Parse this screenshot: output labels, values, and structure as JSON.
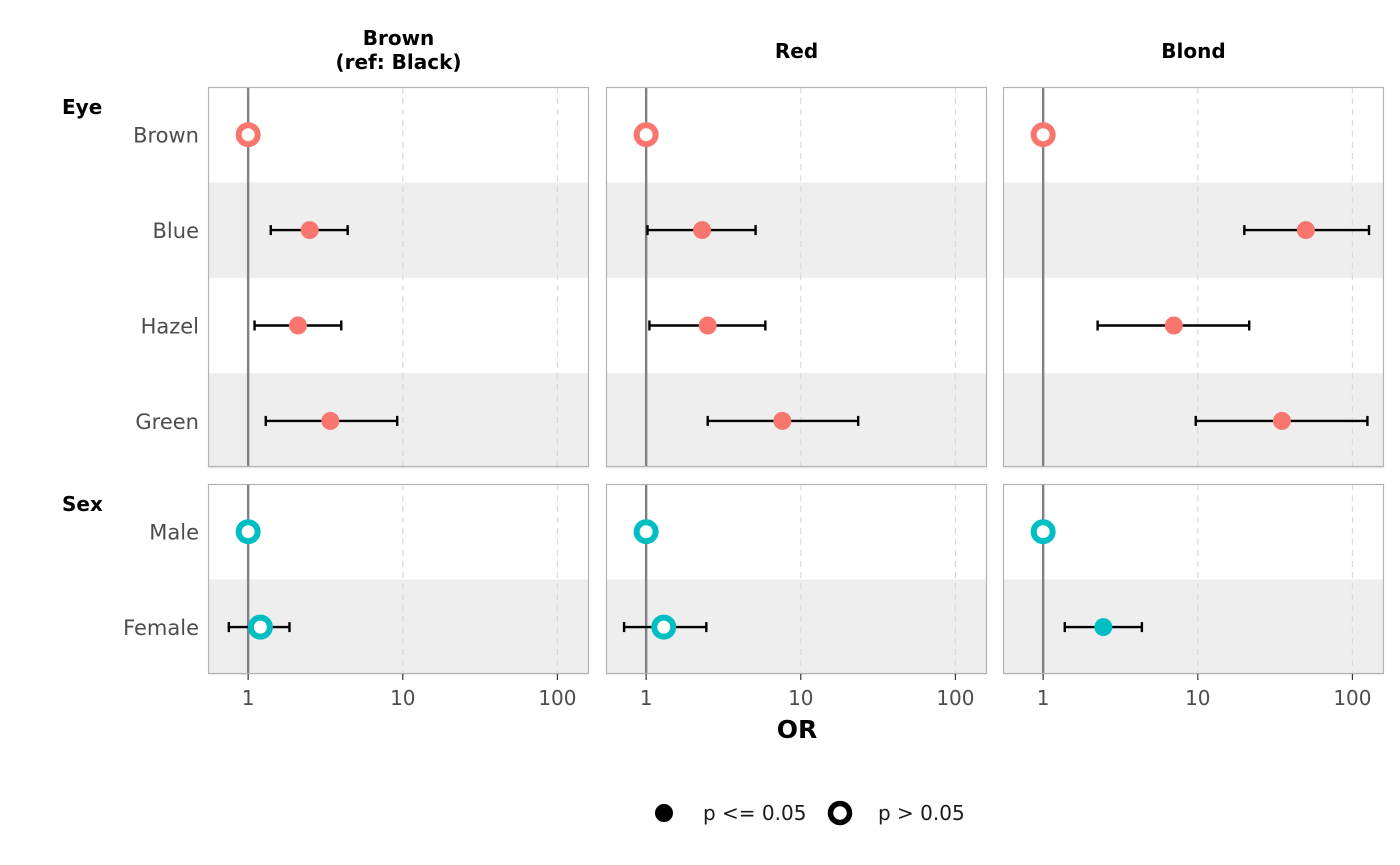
{
  "chart_data": {
    "type": "scatter",
    "subtype": "forest-plot-with-error-bars",
    "x_axis": {
      "label": "OR",
      "scale": "log10",
      "ticks": [
        1,
        10,
        100
      ],
      "tick_labels": [
        "1",
        "10",
        "100"
      ],
      "xlim": [
        0.55,
        160
      ],
      "reference_line": 1
    },
    "panels": [
      {
        "label": "Brown\n(ref: Black)"
      },
      {
        "label": "Red"
      },
      {
        "label": "Blond"
      }
    ],
    "groups": [
      {
        "label": "Eye",
        "color": "#F8766D",
        "rows": [
          "Brown",
          "Blue",
          "Hazel",
          "Green"
        ]
      },
      {
        "label": "Sex",
        "color": "#00BFC4",
        "rows": [
          "Male",
          "Female"
        ]
      }
    ],
    "series": [
      {
        "panel": 0,
        "group": 0,
        "row": 0,
        "or": 1.0,
        "ci": null,
        "significant": false
      },
      {
        "panel": 0,
        "group": 0,
        "row": 1,
        "or": 2.5,
        "ci": [
          1.4,
          4.4
        ],
        "significant": true
      },
      {
        "panel": 0,
        "group": 0,
        "row": 2,
        "or": 2.1,
        "ci": [
          1.1,
          4.0
        ],
        "significant": true
      },
      {
        "panel": 0,
        "group": 0,
        "row": 3,
        "or": 3.4,
        "ci": [
          1.3,
          9.2
        ],
        "significant": true
      },
      {
        "panel": 0,
        "group": 1,
        "row": 0,
        "or": 1.0,
        "ci": null,
        "significant": false
      },
      {
        "panel": 0,
        "group": 1,
        "row": 1,
        "or": 1.2,
        "ci": [
          0.75,
          1.85
        ],
        "significant": false
      },
      {
        "panel": 1,
        "group": 0,
        "row": 0,
        "or": 1.0,
        "ci": null,
        "significant": false
      },
      {
        "panel": 1,
        "group": 0,
        "row": 1,
        "or": 2.3,
        "ci": [
          1.02,
          5.1
        ],
        "significant": true
      },
      {
        "panel": 1,
        "group": 0,
        "row": 2,
        "or": 2.5,
        "ci": [
          1.05,
          5.9
        ],
        "significant": true
      },
      {
        "panel": 1,
        "group": 0,
        "row": 3,
        "or": 7.6,
        "ci": [
          2.5,
          23.5
        ],
        "significant": true
      },
      {
        "panel": 1,
        "group": 1,
        "row": 0,
        "or": 1.0,
        "ci": null,
        "significant": false
      },
      {
        "panel": 1,
        "group": 1,
        "row": 1,
        "or": 1.3,
        "ci": [
          0.72,
          2.45
        ],
        "significant": false
      },
      {
        "panel": 2,
        "group": 0,
        "row": 0,
        "or": 1.0,
        "ci": null,
        "significant": false
      },
      {
        "panel": 2,
        "group": 0,
        "row": 1,
        "or": 50,
        "ci": [
          20,
          128
        ],
        "significant": true
      },
      {
        "panel": 2,
        "group": 0,
        "row": 2,
        "or": 7.0,
        "ci": [
          2.25,
          21.5
        ],
        "significant": true
      },
      {
        "panel": 2,
        "group": 0,
        "row": 3,
        "or": 35,
        "ci": [
          9.7,
          125
        ],
        "significant": true
      },
      {
        "panel": 2,
        "group": 1,
        "row": 0,
        "or": 1.0,
        "ci": null,
        "significant": false
      },
      {
        "panel": 2,
        "group": 1,
        "row": 1,
        "or": 2.45,
        "ci": [
          1.38,
          4.35
        ],
        "significant": true
      }
    ],
    "legend": {
      "position": "bottom",
      "items": [
        {
          "label": "p <= 0.05",
          "shape": "filled-circle"
        },
        {
          "label": "p > 0.05",
          "shape": "ring"
        }
      ]
    },
    "grid": {
      "major_x": "dashed",
      "row_banding": true
    }
  }
}
